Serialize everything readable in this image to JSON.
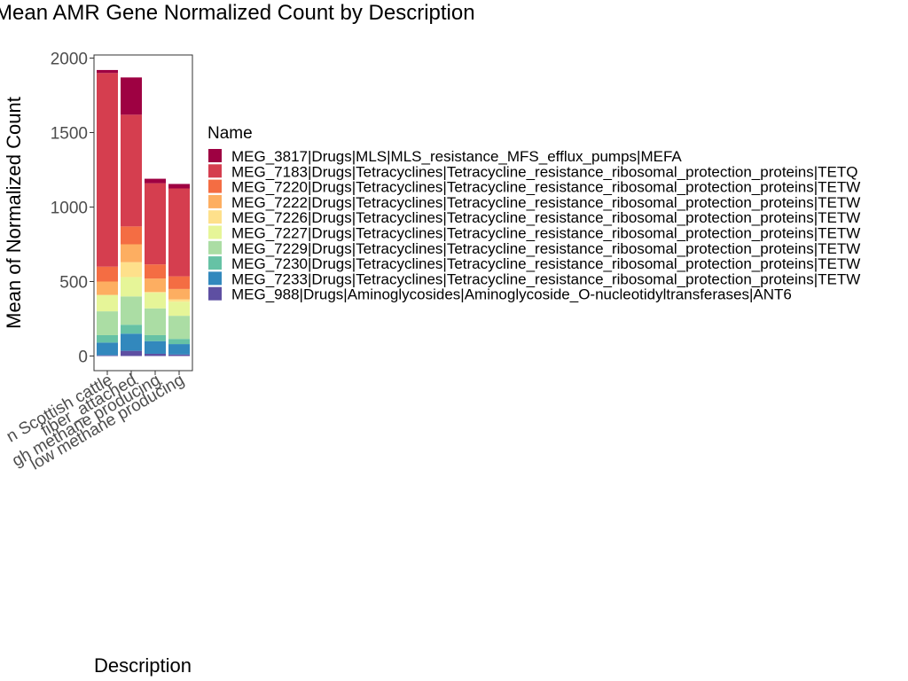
{
  "chart_data": {
    "type": "bar",
    "stacked": true,
    "title": "Mean AMR Gene Normalized Count by Description",
    "xlabel": "Description",
    "ylabel": "Mean of Normalized Count",
    "ylim": [
      0,
      2000
    ],
    "yticks": [
      0,
      500,
      1000,
      1500,
      2000
    ],
    "grid": false,
    "legend_position": "right",
    "legend_title": "Name",
    "categories": [
      "Scottish cattle",
      "fiber_attached",
      "high methane producing",
      "low methane producing"
    ],
    "category_labels": [
      "n Scottish cattle",
      "fiber_attached",
      "gh methane producing",
      "low methane producing"
    ],
    "series": [
      {
        "name": "MEG_988|Drugs|Aminoglycosides|Aminoglycoside_O-nucleotidyltransferases|ANT6",
        "color": "#5E4FA2",
        "values": [
          5,
          35,
          15,
          10
        ]
      },
      {
        "name": "MEG_7233|Drugs|Tetracyclines|Tetracycline_resistance_ribosomal_protection_proteins|TETW",
        "color": "#3288BD",
        "values": [
          85,
          115,
          85,
          70
        ]
      },
      {
        "name": "MEG_7230|Drugs|Tetracyclines|Tetracycline_resistance_ribosomal_protection_proteins|TETW",
        "color": "#66C2A5",
        "values": [
          50,
          60,
          40,
          35
        ]
      },
      {
        "name": "MEG_7229|Drugs|Tetracyclines|Tetracycline_resistance_ribosomal_protection_proteins|TETW",
        "color": "#ABDDA4",
        "values": [
          160,
          190,
          180,
          155
        ]
      },
      {
        "name": "MEG_7227|Drugs|Tetracyclines|Tetracycline_resistance_ribosomal_protection_proteins|TETW",
        "color": "#E6F598",
        "values": [
          110,
          130,
          105,
          95
        ]
      },
      {
        "name": "MEG_7226|Drugs|Tetracyclines|Tetracycline_resistance_ribosomal_protection_proteins|TETW",
        "color": "#FEE08B",
        "values": [
          0,
          100,
          5,
          15
        ]
      },
      {
        "name": "MEG_7222|Drugs|Tetracyclines|Tetracycline_resistance_ribosomal_protection_proteins|TETW",
        "color": "#FDAE61",
        "values": [
          90,
          120,
          90,
          70
        ]
      },
      {
        "name": "MEG_7220|Drugs|Tetracyclines|Tetracycline_resistance_ribosomal_protection_proteins|TETW",
        "color": "#F46D43",
        "values": [
          100,
          120,
          95,
          85
        ]
      },
      {
        "name": "MEG_7183|Drugs|Tetracyclines|Tetracycline_resistance_ribosomal_protection_proteins|TETQ",
        "color": "#D53E4F",
        "values": [
          1300,
          750,
          545,
          590
        ]
      },
      {
        "name": "MEG_3817|Drugs|MLS|MLS_resistance_MFS_efflux_pumps|MEFA",
        "color": "#9E0142",
        "values": [
          20,
          250,
          30,
          30
        ]
      }
    ]
  }
}
